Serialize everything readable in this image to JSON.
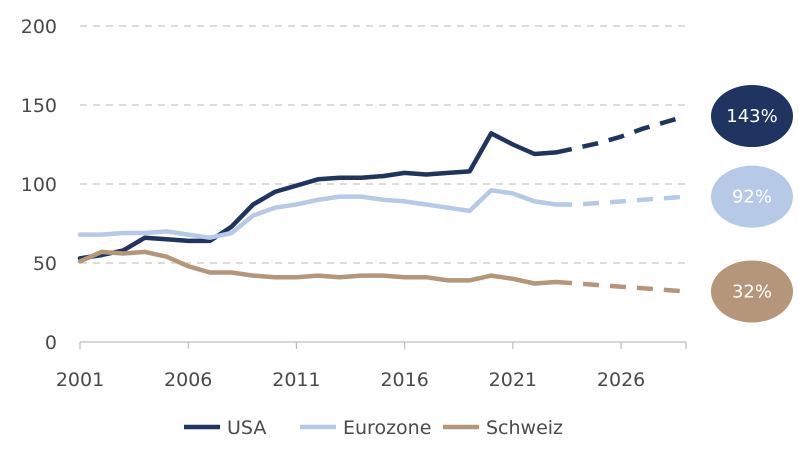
{
  "chart_data": {
    "type": "line",
    "ylim": [
      0,
      200
    ],
    "yticks": [
      0,
      50,
      100,
      150,
      200
    ],
    "xlim": [
      2001,
      2029
    ],
    "xticks": [
      2001,
      2006,
      2011,
      2016,
      2021,
      2026
    ],
    "grid": "horizontal dashed",
    "legend_position": "bottom",
    "series": [
      {
        "name": "USA",
        "color": "#1f3461",
        "actual": [
          [
            2001,
            53
          ],
          [
            2002,
            55
          ],
          [
            2003,
            58
          ],
          [
            2004,
            66
          ],
          [
            2005,
            65
          ],
          [
            2006,
            64
          ],
          [
            2007,
            64
          ],
          [
            2008,
            73
          ],
          [
            2009,
            87
          ],
          [
            2010,
            95
          ],
          [
            2011,
            99
          ],
          [
            2012,
            103
          ],
          [
            2013,
            104
          ],
          [
            2014,
            104
          ],
          [
            2015,
            105
          ],
          [
            2016,
            107
          ],
          [
            2017,
            106
          ],
          [
            2018,
            107
          ],
          [
            2019,
            108
          ],
          [
            2020,
            132
          ],
          [
            2021,
            125
          ],
          [
            2022,
            119
          ],
          [
            2023,
            120
          ]
        ],
        "projection": [
          [
            2023,
            120
          ],
          [
            2024,
            123
          ],
          [
            2025,
            126
          ],
          [
            2026,
            130
          ],
          [
            2027,
            135
          ],
          [
            2028,
            139
          ],
          [
            2029,
            143
          ]
        ],
        "end_label": "143%"
      },
      {
        "name": "Eurozone",
        "color": "#b6c9e6",
        "actual": [
          [
            2001,
            68
          ],
          [
            2002,
            68
          ],
          [
            2003,
            69
          ],
          [
            2004,
            69
          ],
          [
            2005,
            70
          ],
          [
            2006,
            68
          ],
          [
            2007,
            66
          ],
          [
            2008,
            69
          ],
          [
            2009,
            80
          ],
          [
            2010,
            85
          ],
          [
            2011,
            87
          ],
          [
            2012,
            90
          ],
          [
            2013,
            92
          ],
          [
            2014,
            92
          ],
          [
            2015,
            90
          ],
          [
            2016,
            89
          ],
          [
            2017,
            87
          ],
          [
            2018,
            85
          ],
          [
            2019,
            83
          ],
          [
            2020,
            96
          ],
          [
            2021,
            94
          ],
          [
            2022,
            89
          ],
          [
            2023,
            87
          ]
        ],
        "projection": [
          [
            2023,
            87
          ],
          [
            2024,
            87
          ],
          [
            2025,
            88
          ],
          [
            2026,
            89
          ],
          [
            2027,
            90
          ],
          [
            2028,
            91
          ],
          [
            2029,
            92
          ]
        ],
        "end_label": "92%"
      },
      {
        "name": "Schweiz",
        "color": "#b5967a",
        "actual": [
          [
            2001,
            51
          ],
          [
            2002,
            57
          ],
          [
            2003,
            56
          ],
          [
            2004,
            57
          ],
          [
            2005,
            54
          ],
          [
            2006,
            48
          ],
          [
            2007,
            44
          ],
          [
            2008,
            44
          ],
          [
            2009,
            42
          ],
          [
            2010,
            41
          ],
          [
            2011,
            41
          ],
          [
            2012,
            42
          ],
          [
            2013,
            41
          ],
          [
            2014,
            42
          ],
          [
            2015,
            42
          ],
          [
            2016,
            41
          ],
          [
            2017,
            41
          ],
          [
            2018,
            39
          ],
          [
            2019,
            39
          ],
          [
            2020,
            42
          ],
          [
            2021,
            40
          ],
          [
            2022,
            37
          ],
          [
            2023,
            38
          ]
        ],
        "projection": [
          [
            2023,
            38
          ],
          [
            2024,
            37
          ],
          [
            2025,
            36
          ],
          [
            2026,
            35
          ],
          [
            2027,
            34
          ],
          [
            2028,
            33
          ],
          [
            2029,
            32
          ]
        ],
        "end_label": "32%"
      }
    ]
  }
}
